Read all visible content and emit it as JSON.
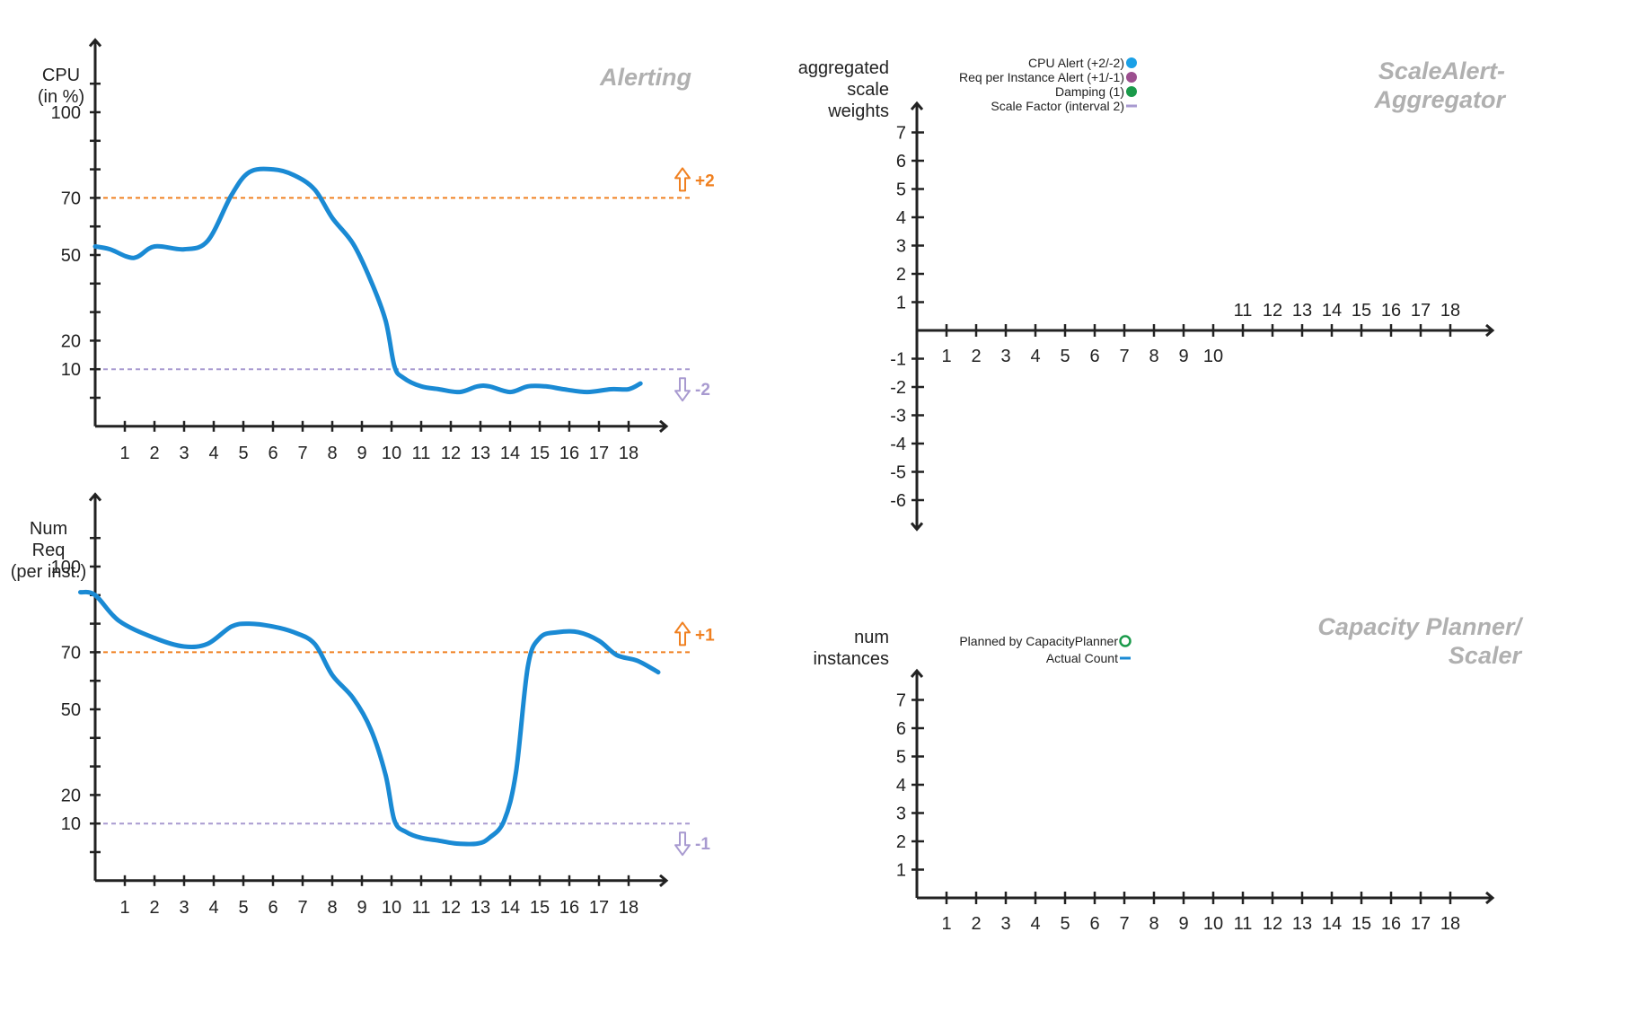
{
  "colors": {
    "series": "#1a8ad4",
    "upper_threshold": "#f08020",
    "lower_threshold": "#a89ad0",
    "axis": "#222222",
    "panel_title": "#b0b0b0",
    "legend_cpu": "#1aa0e6",
    "legend_req": "#9c4f8f",
    "legend_damping": "#1a9a4a",
    "legend_scale": "#a89ad0",
    "legend_planned": "#1a9a4a"
  },
  "chart_data": [
    {
      "id": "alerting",
      "type": "line",
      "title": "Alerting",
      "ylabel": [
        "CPU",
        "(in %)"
      ],
      "x_ticks": [
        1,
        2,
        3,
        4,
        5,
        6,
        7,
        8,
        9,
        10,
        11,
        12,
        13,
        14,
        15,
        16,
        17,
        18
      ],
      "y_ticks": [
        100,
        70,
        50,
        20,
        10
      ],
      "xlim": [
        0,
        19
      ],
      "ylim": [
        -10,
        125
      ],
      "thresholds": [
        {
          "value": 70,
          "label": "+2",
          "arrow": "up",
          "kind": "upper"
        },
        {
          "value": 10,
          "label": "-2",
          "arrow": "down",
          "kind": "lower"
        }
      ],
      "series": [
        {
          "x": [
            0,
            0.5,
            1.3,
            2,
            3,
            3.8,
            4.6,
            5.2,
            6,
            6.7,
            7.4,
            8,
            8.7,
            9.3,
            9.8,
            10.1,
            10.4,
            11,
            11.6,
            12.3,
            12.9,
            13.3,
            14,
            14.6,
            15.2,
            15.8,
            16.6,
            17.4,
            18,
            18.4
          ],
          "y": [
            53,
            52,
            49,
            53,
            52,
            55,
            71,
            79,
            80,
            78,
            73,
            63,
            54,
            41,
            27,
            11,
            7,
            4,
            3,
            2,
            4,
            4,
            2,
            4,
            4,
            3,
            2,
            3,
            3,
            5
          ]
        }
      ]
    },
    {
      "id": "requests",
      "type": "line",
      "title": "",
      "ylabel": [
        "Num",
        "Req",
        "(per inst.)"
      ],
      "x_ticks": [
        1,
        2,
        3,
        4,
        5,
        6,
        7,
        8,
        9,
        10,
        11,
        12,
        13,
        14,
        15,
        16,
        17,
        18
      ],
      "y_ticks": [
        100,
        70,
        50,
        20,
        10
      ],
      "xlim": [
        0,
        19
      ],
      "ylim": [
        -10,
        125
      ],
      "thresholds": [
        {
          "value": 70,
          "label": "+1",
          "arrow": "up",
          "kind": "upper"
        },
        {
          "value": 10,
          "label": "-1",
          "arrow": "down",
          "kind": "lower"
        }
      ],
      "series": [
        {
          "x": [
            -0.5,
            0,
            0.8,
            2,
            3,
            3.8,
            4.6,
            5.2,
            6,
            6.7,
            7.4,
            8,
            8.7,
            9.3,
            9.8,
            10.1,
            10.5,
            11,
            11.6,
            12.2,
            12.9,
            13.3,
            13.8,
            14.2,
            14.6,
            15,
            15.6,
            16.3,
            17,
            17.6,
            18.3,
            19
          ],
          "y": [
            91,
            90,
            81,
            75,
            72,
            73,
            79,
            80,
            79,
            77,
            73,
            62,
            54,
            43,
            27,
            11,
            7,
            5,
            4,
            3,
            3,
            5,
            11,
            28,
            65,
            75,
            77,
            77,
            74,
            69,
            67,
            63
          ]
        }
      ]
    },
    {
      "id": "aggregator",
      "type": "scatter",
      "title": [
        "ScaleAlert-",
        "Aggregator"
      ],
      "ylabel": [
        "aggregated",
        "scale",
        "weights"
      ],
      "x_ticks_below": [
        1,
        2,
        3,
        4,
        5,
        6,
        7,
        8,
        9,
        10
      ],
      "x_ticks_above": [
        11,
        12,
        13,
        14,
        15,
        16,
        17,
        18
      ],
      "y_ticks": [
        7,
        6,
        5,
        4,
        3,
        2,
        1,
        -1,
        -2,
        -3,
        -4,
        -5,
        -6
      ],
      "ylim": [
        -7,
        8
      ],
      "legend": [
        {
          "label": "CPU Alert (+2/-2)",
          "marker": "dot",
          "color_key": "legend_cpu"
        },
        {
          "label": "Req per Instance Alert (+1/-1)",
          "marker": "dot",
          "color_key": "legend_req"
        },
        {
          "label": "Damping (1)",
          "marker": "dot",
          "color_key": "legend_damping"
        },
        {
          "label": "Scale Factor (interval 2)",
          "marker": "dash",
          "color_key": "legend_scale"
        }
      ],
      "series": []
    },
    {
      "id": "planner",
      "type": "line",
      "title": [
        "Capacity Planner/",
        "Scaler"
      ],
      "ylabel": [
        "num",
        "instances"
      ],
      "x_ticks": [
        1,
        2,
        3,
        4,
        5,
        6,
        7,
        8,
        9,
        10,
        11,
        12,
        13,
        14,
        15,
        16,
        17,
        18
      ],
      "y_ticks": [
        7,
        6,
        5,
        4,
        3,
        2,
        1
      ],
      "ylim": [
        0,
        8
      ],
      "legend": [
        {
          "label": "Planned by CapacityPlanner",
          "marker": "ring",
          "color_key": "legend_planned"
        },
        {
          "label": "Actual Count",
          "marker": "dash",
          "color_key": "series"
        }
      ],
      "series": []
    }
  ]
}
